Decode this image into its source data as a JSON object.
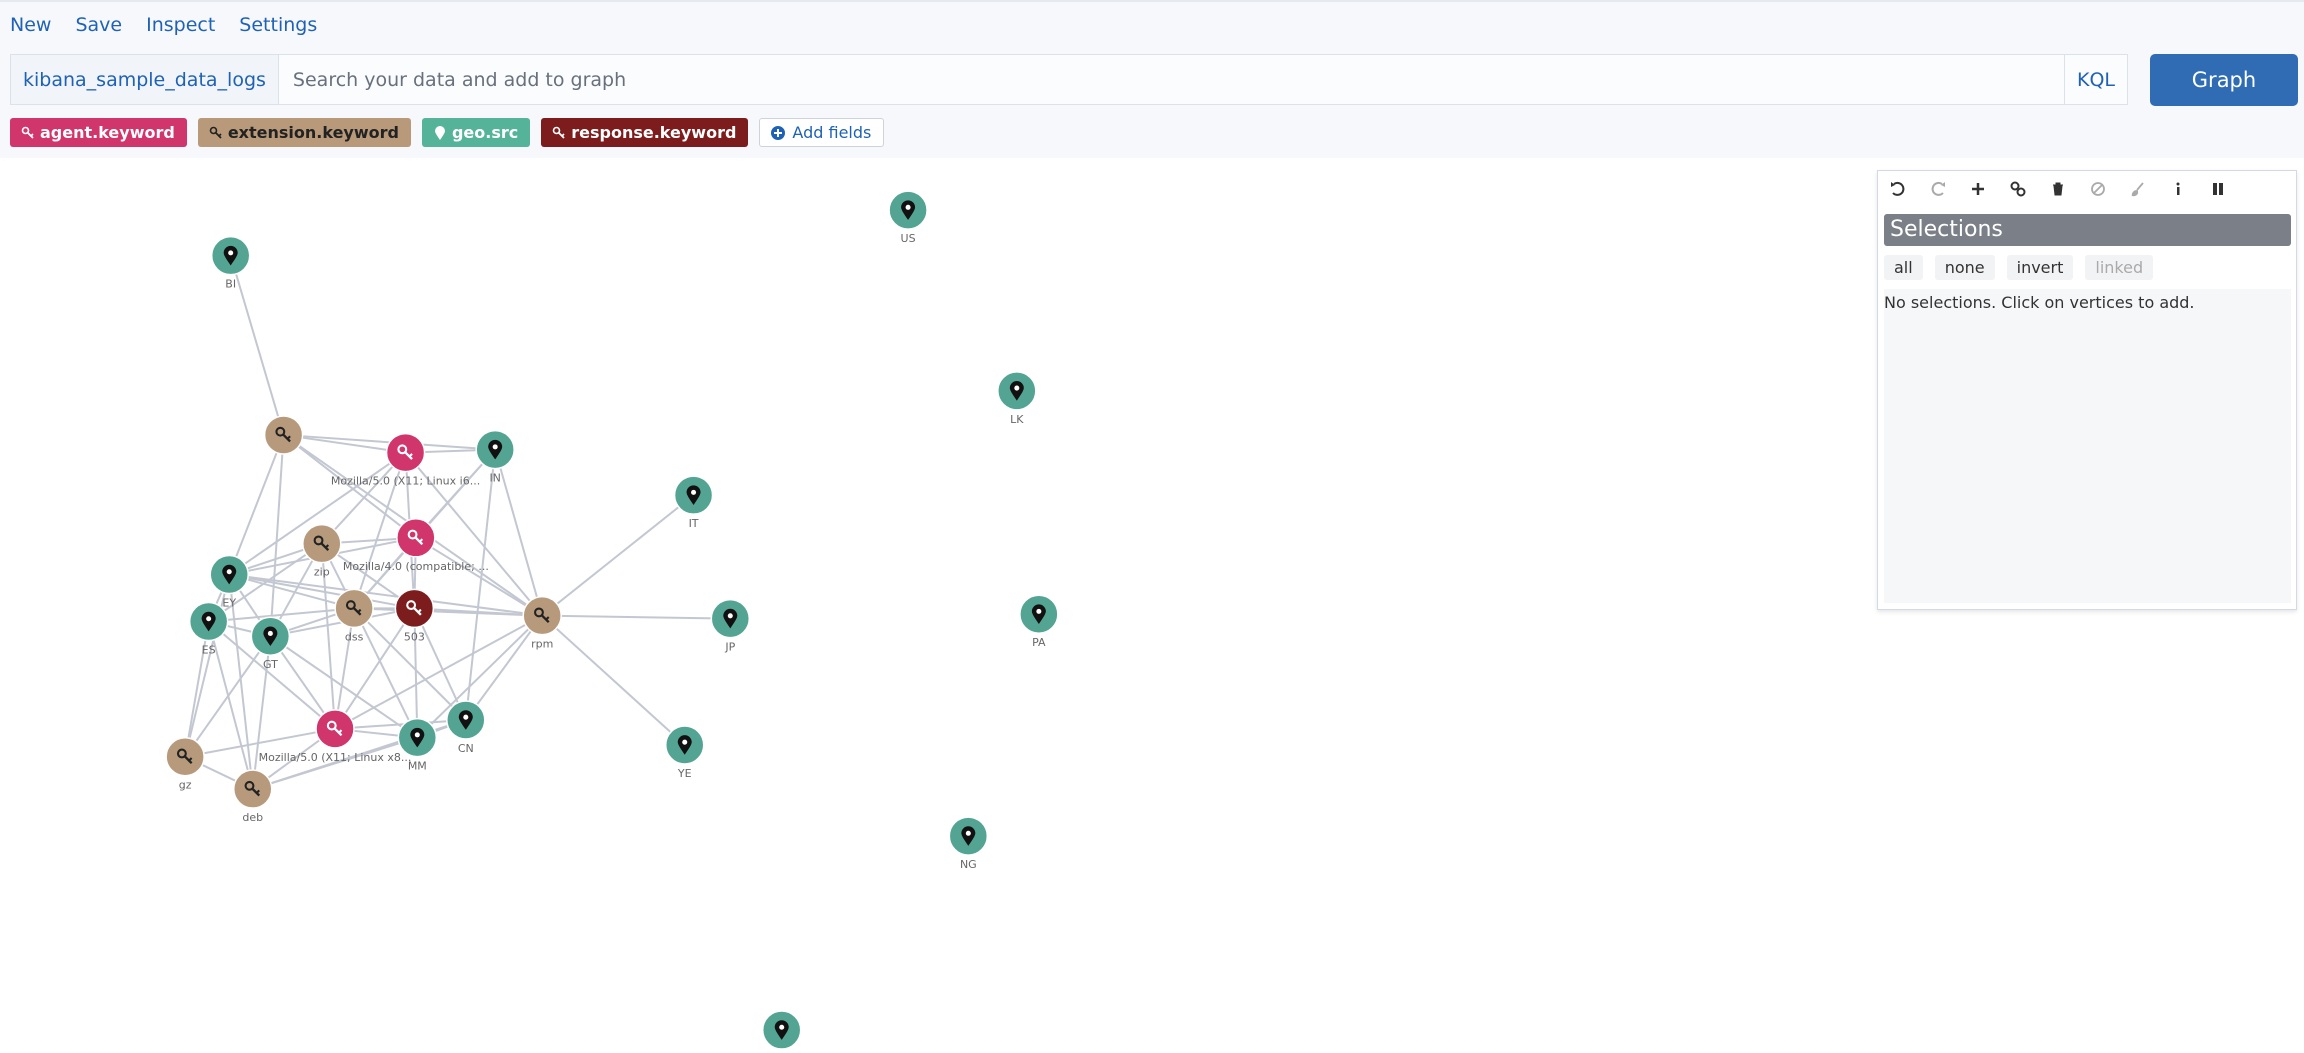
{
  "menu": [
    "New",
    "Save",
    "Inspect",
    "Settings"
  ],
  "search": {
    "index": "kibana_sample_data_logs",
    "placeholder": "Search your data and add to graph",
    "language": "KQL",
    "submit": "Graph"
  },
  "fields": [
    "agent.keyword",
    "extension.keyword",
    "geo.src",
    "response.keyword"
  ],
  "add_fields": "Add fields",
  "selections": {
    "title": "Selections",
    "buttons": [
      "all",
      "none",
      "invert",
      "linked"
    ],
    "empty": "No selections. Click on vertices to add."
  },
  "graph": {
    "node_labels": [
      "US",
      "BI",
      "LK",
      "Mozilla/5.0 (X11; Linux i6...",
      "IN",
      "IT",
      "zip",
      "Mozilla/4.0 (compatible; ...",
      "EY",
      "ES",
      "GT",
      "dss",
      "503",
      "rpm",
      "JP",
      "PA",
      "Mozilla/5.0 (X11; Linux x8...",
      "MM",
      "CN",
      "YE",
      "gz",
      "deb",
      "NG"
    ]
  }
}
